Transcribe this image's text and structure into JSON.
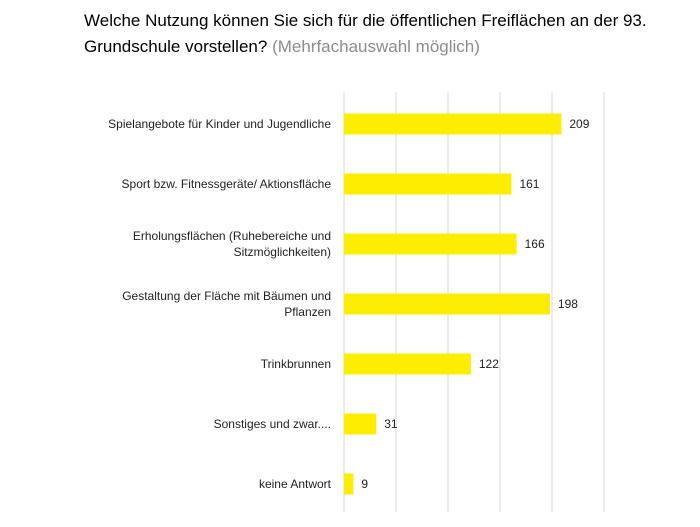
{
  "chart_data": {
    "type": "bar",
    "orientation": "horizontal",
    "title": "Welche Nutzung können Sie sich für die öffentlichen Freiflächen an der 93. Grundschule vorstellen?",
    "subtitle": "(Mehrfachauswahl möglich)",
    "categories": [
      [
        "Spielangebote für Kinder und Jugendliche"
      ],
      [
        "Sport bzw. Fitnessgeräte/ Aktionsfläche"
      ],
      [
        "Erholungsflächen (Ruhebereiche und",
        "Sitzmöglichkeiten)"
      ],
      [
        "Gestaltung der Fläche mit Bäumen und",
        "Pflanzen"
      ],
      [
        "Trinkbrunnen"
      ],
      [
        "Sonstiges und zwar...."
      ],
      [
        "keine Antwort"
      ]
    ],
    "values": [
      209,
      161,
      166,
      198,
      122,
      31,
      9
    ],
    "xlim": [
      0,
      250
    ],
    "grid": true,
    "bar_color": "#FFED00",
    "grid_color": "#d9d9d9"
  }
}
